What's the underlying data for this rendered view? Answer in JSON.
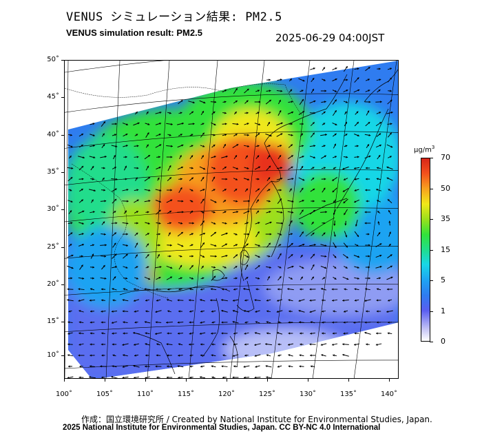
{
  "header": {
    "title_ja": "VENUS シミュレーション結果: PM2.5",
    "title_en": "VENUS simulation result: PM2.5",
    "timestamp": "2025-06-29 04:00JST"
  },
  "map": {
    "lat_labels": [
      "50˚",
      "45˚",
      "40˚",
      "35˚",
      "30˚",
      "25˚",
      "20˚",
      "15˚",
      "10˚"
    ],
    "lon_labels": [
      "100˚",
      "105˚",
      "110˚",
      "115˚",
      "120˚",
      "125˚",
      "130˚",
      "135˚",
      "140˚"
    ],
    "variable": "PM2.5"
  },
  "colorbar": {
    "unit": "μg/m3",
    "labels": [
      "70",
      "50",
      "35",
      "15",
      "5",
      "1",
      "0"
    ]
  },
  "footer": {
    "credit_line1": "作成：国立環境研究所 / Created by National Institute for Environmental Studies, Japan.",
    "credit_line2": "2025 National Institute for Environmental Studies, Japan. CC BY-NC 4.0 International"
  }
}
